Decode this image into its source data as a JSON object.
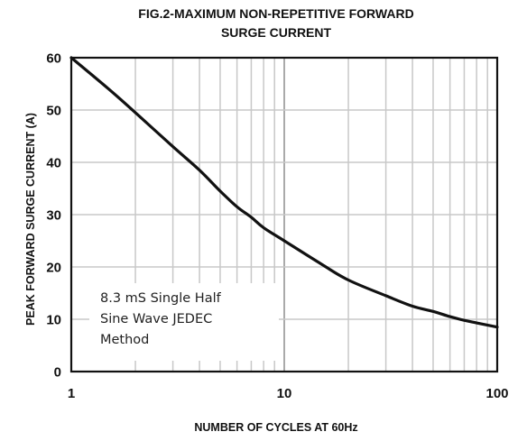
{
  "chart_data": {
    "type": "line",
    "title_lines": [
      "FIG.2-MAXIMUM NON-REPETITIVE FORWARD",
      "SURGE CURRENT"
    ],
    "xlabel": "NUMBER OF CYCLES AT 60Hz",
    "ylabel": "PEAK FORWARD SURGE CURRENT (A)",
    "x_scale": "log",
    "xlim": [
      1,
      100
    ],
    "ylim": [
      0,
      60
    ],
    "x_ticks": [
      1,
      10,
      100
    ],
    "x_tick_labels": [
      "1",
      "10",
      "100"
    ],
    "y_ticks": [
      0,
      10,
      20,
      30,
      40,
      50,
      60
    ],
    "y_tick_labels": [
      "0",
      "10",
      "20",
      "30",
      "40",
      "50",
      "60"
    ],
    "grid": true,
    "series": [
      {
        "x": [
          1,
          1.5,
          2,
          3,
          4,
          5,
          6,
          7,
          8,
          10,
          15,
          20,
          30,
          40,
          50,
          60,
          70,
          80,
          100
        ],
        "y": [
          60,
          54,
          49.5,
          43,
          38.5,
          34.5,
          31.5,
          29.5,
          27.5,
          25,
          20.5,
          17.5,
          14.5,
          12.5,
          11.5,
          10.5,
          9.8,
          9.3,
          8.5
        ]
      }
    ],
    "annotation_lines": [
      "8.3 mS Single Half",
      "Sine Wave JEDEC",
      "Method"
    ],
    "annotation_position": "bottom-left"
  },
  "colors": {
    "curve": "#111111",
    "frame": "#111111",
    "grid": "#c8c8c8",
    "annotation_box": "#ffffff",
    "background": "#ffffff"
  }
}
